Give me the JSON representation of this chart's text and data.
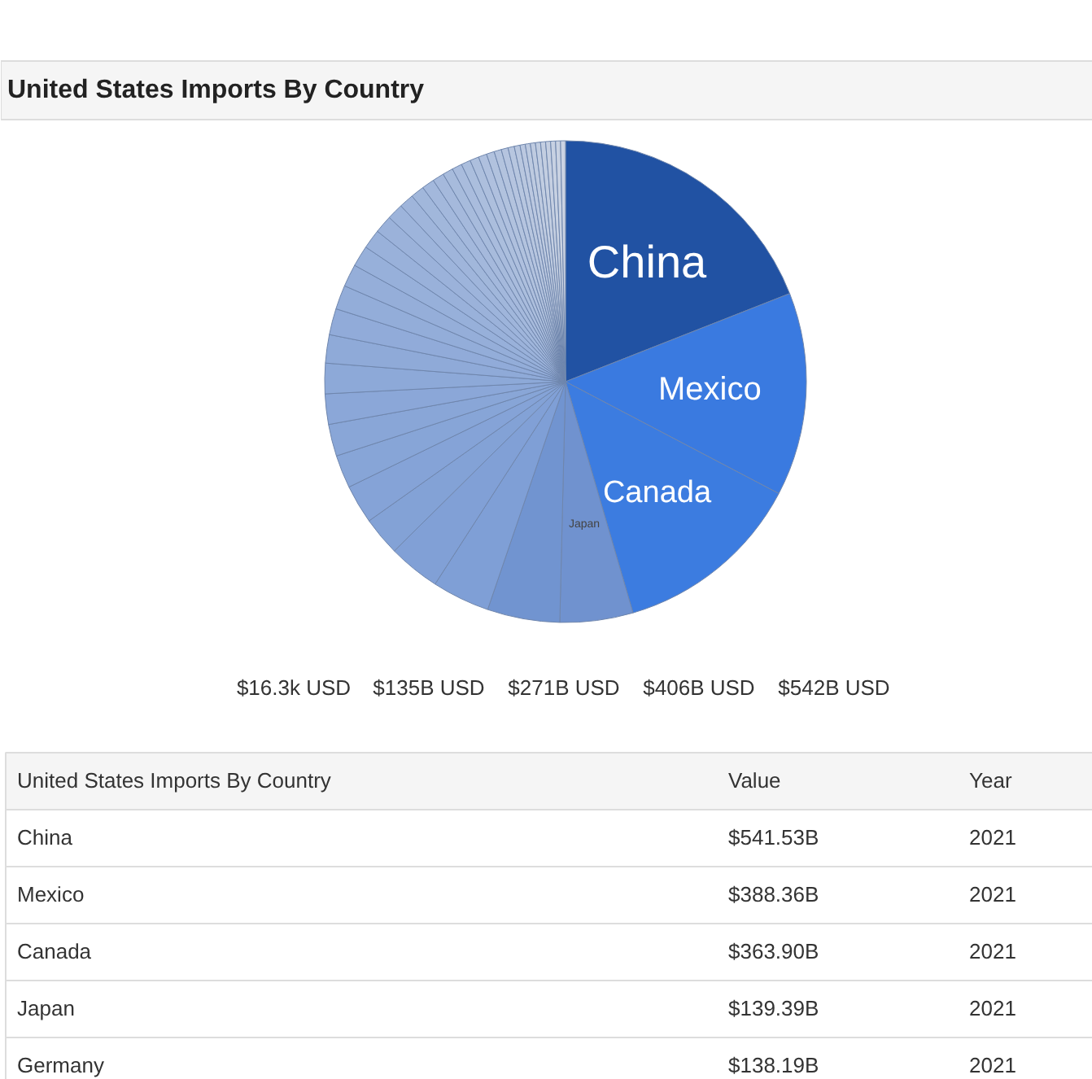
{
  "chart_data": {
    "type": "pie",
    "title": "United States Imports By Country",
    "categories": [
      "China",
      "Mexico",
      "Canada",
      "Japan",
      null,
      null,
      null,
      null,
      null,
      null,
      null,
      null,
      null,
      null,
      null,
      null,
      null,
      null,
      null,
      null,
      null,
      null,
      null,
      null,
      null,
      null,
      null,
      null,
      null,
      null,
      null,
      null,
      null,
      null,
      null,
      null,
      null,
      null,
      null,
      null,
      null,
      null,
      null,
      null
    ],
    "values": [
      19.04,
      13.65,
      12.79,
      4.9,
      4.86,
      3.87,
      3.48,
      2.6,
      2.6,
      2.22,
      2.14,
      2.04,
      2.04,
      1.9,
      1.76,
      1.62,
      1.51,
      1.41,
      1.3,
      1.2,
      1.09,
      0.98,
      0.91,
      0.84,
      0.77,
      0.7,
      0.67,
      0.63,
      0.6,
      0.56,
      0.53,
      0.49,
      0.46,
      0.42,
      0.39,
      0.35,
      0.34,
      0.34,
      0.34,
      0.34,
      0.33,
      0.33,
      0.33,
      0.33
    ],
    "colors": [
      "#2152a3",
      "#3a7ae0",
      "#3c7ce0",
      "#7092cf",
      "#7194d0",
      "#7f9fd6",
      "#81a0d6",
      "#83a2d6",
      "#85a3d7",
      "#87a5d7",
      "#89a6d7",
      "#8ba7d8",
      "#8da9d8",
      "#8faad8",
      "#91abd9",
      "#93add9",
      "#95aed9",
      "#97b0da",
      "#99b1da",
      "#9bb2da",
      "#9db4db",
      "#9fb5db",
      "#a1b7db",
      "#a3b8dc",
      "#a5b9dc",
      "#a7bbdc",
      "#a9bcdd",
      "#abbedd",
      "#adbfdd",
      "#afc0de",
      "#b1c2de",
      "#b3c3de",
      "#b5c4df",
      "#b7c6df",
      "#b9c7df",
      "#bbc8e0",
      "#bdcae0",
      "#bfcbe0",
      "#c1cde1",
      "#c3cee1",
      "#c5cfe1",
      "#c7d1e2",
      "#c9d2e2",
      "#cbd3e3"
    ],
    "annotations": [
      "$16.3k USD",
      "$135B USD",
      "$271B USD",
      "$406B USD",
      "$542B USD",
      "United States Imports By Country",
      "Value",
      "Year",
      "China",
      "$541.53B",
      "2021",
      "Mexico",
      "$388.36B",
      "2021",
      "Canada",
      "$363.90B",
      "2021",
      "Japan",
      "$139.39B",
      "2021",
      "Germany",
      "$138.19B",
      "2021"
    ]
  }
}
